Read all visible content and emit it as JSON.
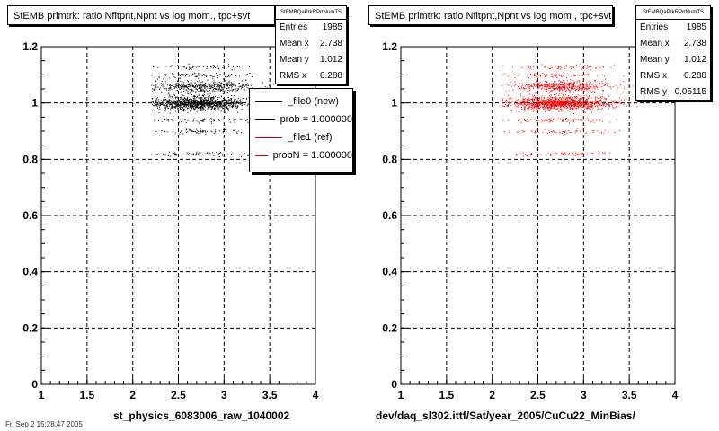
{
  "footer": {
    "date_text": "Fri Sep  2 15:28:47 2005"
  },
  "chart_data": [
    {
      "type": "scatter",
      "title": "StEMB primtrk: ratio Nfitpnt,Npnt vs log mom., tpc+svt",
      "xlabel": "st_physics_6083006_raw_1040002",
      "ylabel": "",
      "xlim": [
        1,
        4
      ],
      "ylim": [
        0,
        1.2
      ],
      "xticks": [
        "1",
        "1.5",
        "2",
        "2.5",
        "3",
        "3.5",
        "4"
      ],
      "yticks": [
        "0",
        "0.2",
        "0.4",
        "0.6",
        "0.8",
        "1",
        "1.2"
      ],
      "grid": true,
      "marker_color": "#000000",
      "stats": {
        "name": "StEMBQaPrkRPrtNumTS",
        "rows": [
          {
            "label": "Entries",
            "value": "1985"
          },
          {
            "label": "Mean x",
            "value": "2.738"
          },
          {
            "label": "Mean y",
            "value": "1.012"
          },
          {
            "label": "RMS x",
            "value": "0.288"
          }
        ]
      },
      "legend": {
        "placement": "right",
        "entries": [
          {
            "label": "_file0 (new)",
            "color": "#000000"
          },
          {
            "label": "prob = 1.000000",
            "color": "#000000"
          },
          {
            "label": "_file1 (ref)",
            "color": "#cc0000"
          },
          {
            "label": "probN = 1.000000",
            "color": "#cc0000"
          }
        ]
      },
      "series": [
        {
          "name": "_file0 (new)",
          "entries": 1985,
          "x_range": [
            2.2,
            3.5
          ],
          "y_values": [
            0.82,
            0.9,
            0.94,
            1.0,
            1.06,
            1.1,
            1.13
          ]
        }
      ]
    },
    {
      "type": "scatter",
      "title": "StEMB primtrk: ratio Nfitpnt,Npnt vs log mom., tpc+svt",
      "xlabel": "dev/daq_sl302.ittf/Sat/year_2005/CuCu22_MinBias/",
      "ylabel": "",
      "xlim": [
        1,
        4
      ],
      "ylim": [
        0,
        1.2
      ],
      "xticks": [
        "1",
        "1.5",
        "2",
        "2.5",
        "3",
        "3.5",
        "4"
      ],
      "yticks": [
        "0",
        "0.2",
        "0.4",
        "0.6",
        "0.8",
        "1",
        "1.2"
      ],
      "grid": true,
      "marker_color": "#ff0000",
      "stats": {
        "name": "StEMBQaPrkRPrtNumTS",
        "rows": [
          {
            "label": "Entries",
            "value": "1985"
          },
          {
            "label": "Mean x",
            "value": "2.738"
          },
          {
            "label": "Mean y",
            "value": "1.012"
          },
          {
            "label": "RMS x",
            "value": "0.288"
          },
          {
            "label": "RMS y",
            "value": "0.05115"
          }
        ]
      },
      "series": [
        {
          "name": "_file1 (ref)",
          "entries": 1985,
          "x_range": [
            2.1,
            3.6
          ],
          "y_values": [
            0.82,
            0.9,
            0.94,
            1.0,
            1.06,
            1.1,
            1.13
          ]
        }
      ]
    }
  ]
}
